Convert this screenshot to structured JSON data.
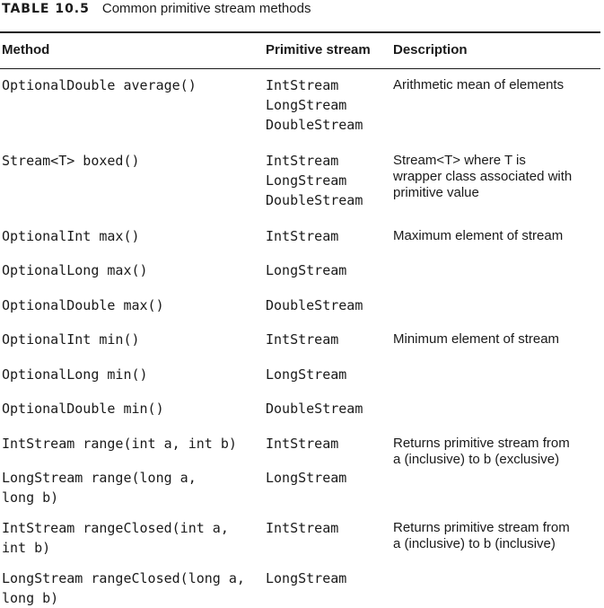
{
  "caption": {
    "number": "TABLE 10.5",
    "title": "Common primitive stream methods"
  },
  "headers": {
    "method": "Method",
    "stream": "Primitive stream",
    "description": "Description"
  },
  "rows": [
    {
      "method": [
        "OptionalDouble average()"
      ],
      "streams": [
        "IntStream",
        "LongStream",
        "DoubleStream"
      ],
      "description": [
        "Arithmetic mean of elements"
      ]
    },
    {
      "method": [
        "Stream<T> boxed()"
      ],
      "streams": [
        "IntStream",
        "LongStream",
        "DoubleStream"
      ],
      "description": [
        "Stream<T> where T is",
        "wrapper class associated with",
        "primitive value"
      ]
    },
    {
      "method": [
        "OptionalInt max()"
      ],
      "streams": [
        "IntStream"
      ],
      "description": [
        "Maximum element of stream"
      ]
    },
    {
      "method": [
        "OptionalLong max()"
      ],
      "streams": [
        "LongStream"
      ],
      "description": []
    },
    {
      "method": [
        "OptionalDouble max()"
      ],
      "streams": [
        "DoubleStream"
      ],
      "description": []
    },
    {
      "method": [
        "OptionalInt min()"
      ],
      "streams": [
        "IntStream"
      ],
      "description": [
        "Minimum element of stream"
      ]
    },
    {
      "method": [
        "OptionalLong min()"
      ],
      "streams": [
        "LongStream"
      ],
      "description": []
    },
    {
      "method": [
        "OptionalDouble min()"
      ],
      "streams": [
        "DoubleStream"
      ],
      "description": []
    },
    {
      "method": [
        "IntStream range(int a, int b)"
      ],
      "streams": [
        "IntStream"
      ],
      "description": [
        "Returns primitive stream from",
        "a (inclusive) to b (exclusive)"
      ]
    },
    {
      "method": [
        "LongStream range(long a,",
        "long b)"
      ],
      "streams": [
        "LongStream"
      ],
      "description": []
    },
    {
      "method": [
        "IntStream rangeClosed(int a,",
        "int b)"
      ],
      "streams": [
        "IntStream"
      ],
      "description": [
        "Returns primitive stream from",
        "a (inclusive) to b (inclusive)"
      ]
    },
    {
      "method": [
        "LongStream rangeClosed(long a,",
        "long b)"
      ],
      "streams": [
        "LongStream"
      ],
      "description": []
    }
  ]
}
